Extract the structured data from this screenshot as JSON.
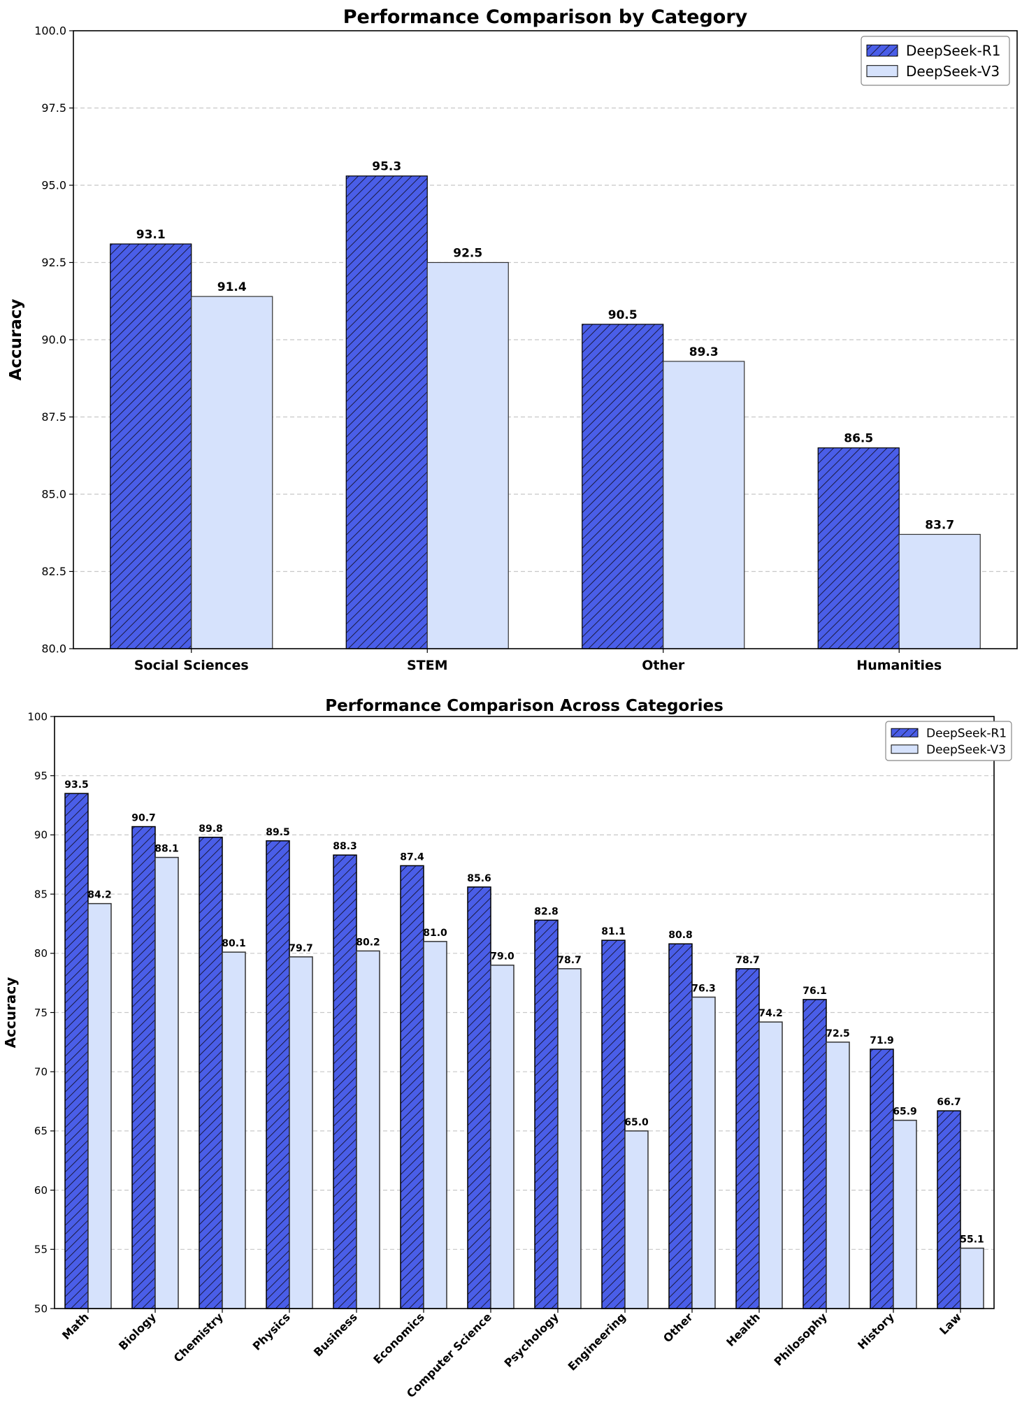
{
  "chart_data": [
    {
      "type": "bar",
      "title": "Performance Comparison by Category",
      "xlabel": "",
      "ylabel": "Accuracy",
      "ylim": [
        80,
        100
      ],
      "yticks": [
        "80.0",
        "82.5",
        "85.0",
        "87.5",
        "90.0",
        "92.5",
        "95.0",
        "97.5",
        "100.0"
      ],
      "categories": [
        "Social Sciences",
        "STEM",
        "Other",
        "Humanities"
      ],
      "series": [
        {
          "name": "DeepSeek-R1",
          "values": [
            93.1,
            95.3,
            90.5,
            86.5
          ],
          "labels": [
            "93.1",
            "95.3",
            "90.5",
            "86.5"
          ]
        },
        {
          "name": "DeepSeek-V3",
          "values": [
            91.4,
            92.5,
            89.3,
            83.7
          ],
          "labels": [
            "91.4",
            "92.5",
            "89.3",
            "83.7"
          ]
        }
      ],
      "grid": true,
      "legend": "top-right"
    },
    {
      "type": "bar",
      "title": "Performance Comparison Across Categories",
      "xlabel": "",
      "ylabel": "Accuracy",
      "ylim": [
        50,
        100
      ],
      "yticks": [
        "50",
        "55",
        "60",
        "65",
        "70",
        "75",
        "80",
        "85",
        "90",
        "95",
        "100"
      ],
      "categories": [
        "Math",
        "Biology",
        "Chemistry",
        "Physics",
        "Business",
        "Economics",
        "Computer Science",
        "Psychology",
        "Engineering",
        "Other",
        "Health",
        "Philosophy",
        "History",
        "Law"
      ],
      "series": [
        {
          "name": "DeepSeek-R1",
          "values": [
            93.5,
            90.7,
            89.8,
            89.5,
            88.3,
            87.4,
            85.6,
            82.8,
            81.1,
            80.8,
            78.7,
            76.1,
            71.9,
            66.7
          ],
          "labels": [
            "93.5",
            "90.7",
            "89.8",
            "89.5",
            "88.3",
            "87.4",
            "85.6",
            "82.8",
            "81.1",
            "80.8",
            "78.7",
            "76.1",
            "71.9",
            "66.7"
          ]
        },
        {
          "name": "DeepSeek-V3",
          "values": [
            84.2,
            88.1,
            80.1,
            79.7,
            80.2,
            81.0,
            79.0,
            78.7,
            65.0,
            76.3,
            74.2,
            72.5,
            65.9,
            55.1
          ],
          "labels": [
            "84.2",
            "88.1",
            "80.1",
            "79.7",
            "80.2",
            "81.0",
            "79.0",
            "78.7",
            "65.0",
            "76.3",
            "74.2",
            "72.5",
            "65.9",
            "55.1"
          ]
        }
      ],
      "grid": true,
      "legend": "top-right"
    }
  ],
  "colors": {
    "r1_fill": "#4a5ee8",
    "v3_fill": "#d6e2fc",
    "hatch": "#1a1a40",
    "grid": "#c8c8c8"
  }
}
